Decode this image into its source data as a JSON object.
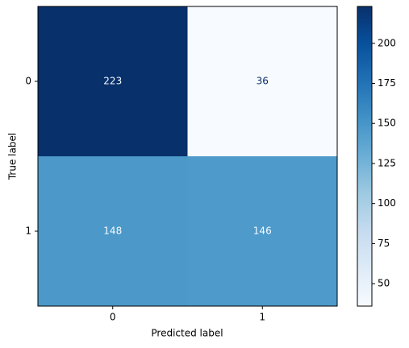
{
  "chart_data": {
    "type": "heatmap",
    "x_label": "Predicted label",
    "y_label": "True label",
    "x_categories": [
      "0",
      "1"
    ],
    "y_categories": [
      "0",
      "1"
    ],
    "values": [
      [
        223,
        36
      ],
      [
        148,
        146
      ]
    ],
    "colormap": "Blues",
    "colorbar": {
      "lim": [
        36,
        223
      ],
      "ticks": [
        50,
        75,
        100,
        125,
        150,
        175,
        200
      ]
    }
  }
}
